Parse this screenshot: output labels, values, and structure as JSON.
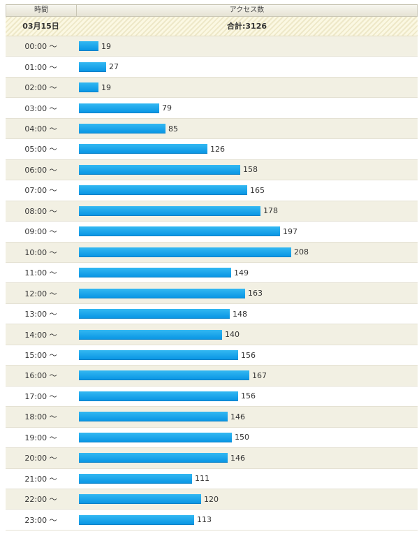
{
  "header": {
    "time_label": "時間",
    "access_label": "アクセス数"
  },
  "summary": {
    "date": "03月15日",
    "total_label": "合計:3126"
  },
  "colors": {
    "bar": "#1aa7ec",
    "row_alt": "#f2f0e3",
    "header_bg": "#ece9dc"
  },
  "chart_data": {
    "type": "bar",
    "orientation": "horizontal",
    "title": "アクセス数",
    "xlabel": "アクセス数",
    "ylabel": "時間",
    "categories": [
      "00:00 ～",
      "01:00 ～",
      "02:00 ～",
      "03:00 ～",
      "04:00 ～",
      "05:00 ～",
      "06:00 ～",
      "07:00 ～",
      "08:00 ～",
      "09:00 ～",
      "10:00 ～",
      "11:00 ～",
      "12:00 ～",
      "13:00 ～",
      "14:00 ～",
      "15:00 ～",
      "16:00 ～",
      "17:00 ～",
      "18:00 ～",
      "19:00 ～",
      "20:00 ～",
      "21:00 ～",
      "22:00 ～",
      "23:00 ～"
    ],
    "values": [
      19,
      27,
      19,
      79,
      85,
      126,
      158,
      165,
      178,
      197,
      208,
      149,
      163,
      148,
      140,
      156,
      167,
      156,
      146,
      150,
      146,
      111,
      120,
      113
    ],
    "xlim": [
      0,
      208
    ]
  }
}
